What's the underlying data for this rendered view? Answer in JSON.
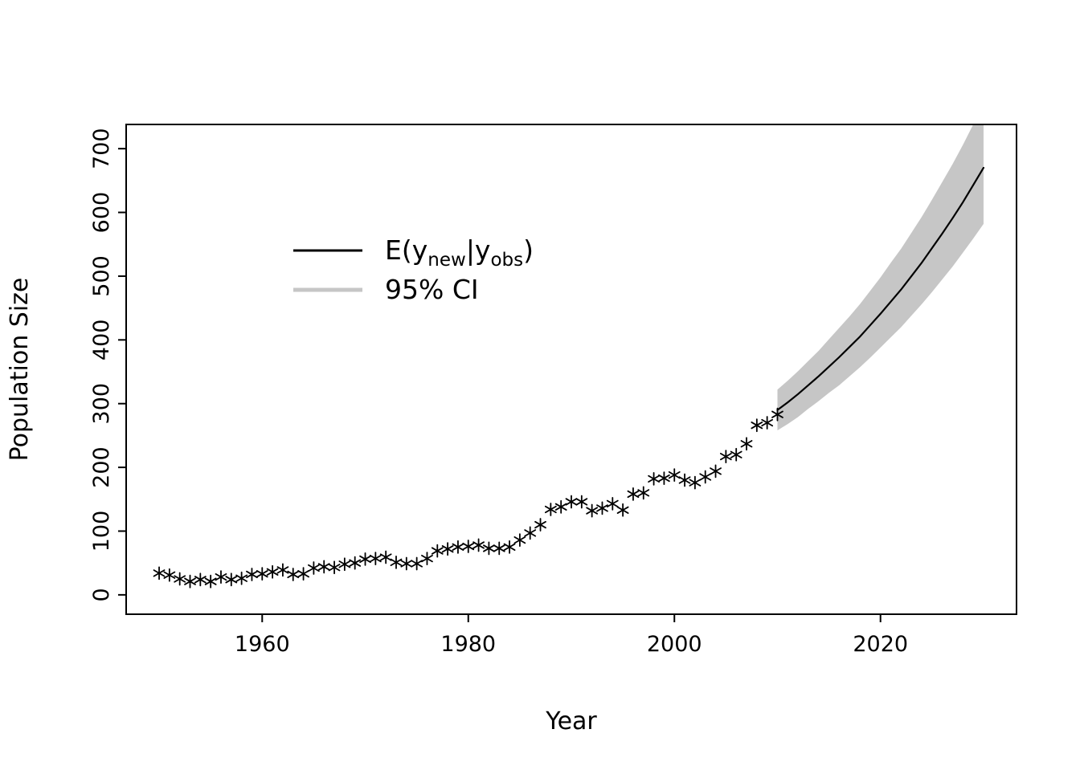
{
  "figure": {
    "background": "#ffffff"
  },
  "chart_data": {
    "type": "scatter",
    "title": "",
    "xlabel": "Year",
    "ylabel": "Population Size",
    "xlim": [
      1946.8,
      2033.2
    ],
    "ylim": [
      -30.4,
      738
    ],
    "xticks": [
      1960,
      1980,
      2000,
      2020
    ],
    "yticks": [
      0,
      100,
      200,
      300,
      400,
      500,
      600,
      700
    ],
    "grid": false,
    "observed": {
      "name": "observed-population-counts",
      "marker": "*",
      "color": "#000000",
      "years": [
        1950,
        1951,
        1952,
        1953,
        1954,
        1955,
        1956,
        1957,
        1958,
        1959,
        1960,
        1961,
        1962,
        1963,
        1964,
        1965,
        1966,
        1967,
        1968,
        1969,
        1970,
        1971,
        1972,
        1973,
        1974,
        1975,
        1976,
        1977,
        1978,
        1979,
        1980,
        1981,
        1982,
        1983,
        1984,
        1985,
        1986,
        1987,
        1988,
        1989,
        1990,
        1991,
        1992,
        1993,
        1994,
        1995,
        1996,
        1997,
        1998,
        1999,
        2000,
        2001,
        2002,
        2003,
        2004,
        2005,
        2006,
        2007,
        2008,
        2009,
        2010
      ],
      "values": [
        34,
        31,
        25,
        21,
        24,
        21,
        28,
        24,
        26,
        32,
        33,
        36,
        39,
        32,
        33,
        42,
        44,
        43,
        48,
        50,
        56,
        57,
        59,
        51,
        49,
        49,
        57,
        69,
        72,
        75,
        76,
        78,
        73,
        73,
        75,
        86,
        97,
        110,
        134,
        138,
        146,
        146,
        132,
        136,
        143,
        133,
        158,
        160,
        182,
        183,
        188,
        180,
        176,
        185,
        194,
        217,
        220,
        237,
        266,
        270,
        283
      ]
    },
    "forecast": {
      "name": "posterior-predictive-mean",
      "color": "#000000",
      "ci_level": "95%",
      "ci_color": "#c6c6c6",
      "years": [
        2010,
        2011,
        2012,
        2013,
        2014,
        2015,
        2016,
        2017,
        2018,
        2019,
        2020,
        2021,
        2022,
        2023,
        2024,
        2025,
        2026,
        2027,
        2028,
        2029,
        2030
      ],
      "mean": [
        290,
        302,
        315,
        329,
        343,
        358,
        373,
        389,
        405,
        423,
        441,
        460,
        479,
        500,
        521,
        544,
        567,
        591,
        616,
        643,
        670
      ],
      "lower": [
        258,
        268,
        279,
        292,
        304,
        317,
        329,
        343,
        357,
        372,
        388,
        404,
        420,
        438,
        456,
        475,
        495,
        515,
        537,
        559,
        582
      ],
      "upper": [
        322,
        336,
        351,
        367,
        383,
        401,
        419,
        437,
        456,
        477,
        498,
        521,
        543,
        568,
        593,
        620,
        648,
        676,
        706,
        738,
        771
      ]
    },
    "legend": {
      "position": "upper-left-inside",
      "box": false,
      "entries": [
        {
          "label": "E(y_new|y_obs)",
          "color": "#000000",
          "parts": [
            {
              "t": "E(y"
            },
            {
              "t": "new",
              "sub": true
            },
            {
              "t": "|y"
            },
            {
              "t": "obs",
              "sub": true
            },
            {
              "t": ")"
            }
          ]
        },
        {
          "label": "95% CI",
          "color": "#c6c6c6",
          "parts": [
            {
              "t": "95% CI"
            }
          ]
        }
      ]
    }
  }
}
